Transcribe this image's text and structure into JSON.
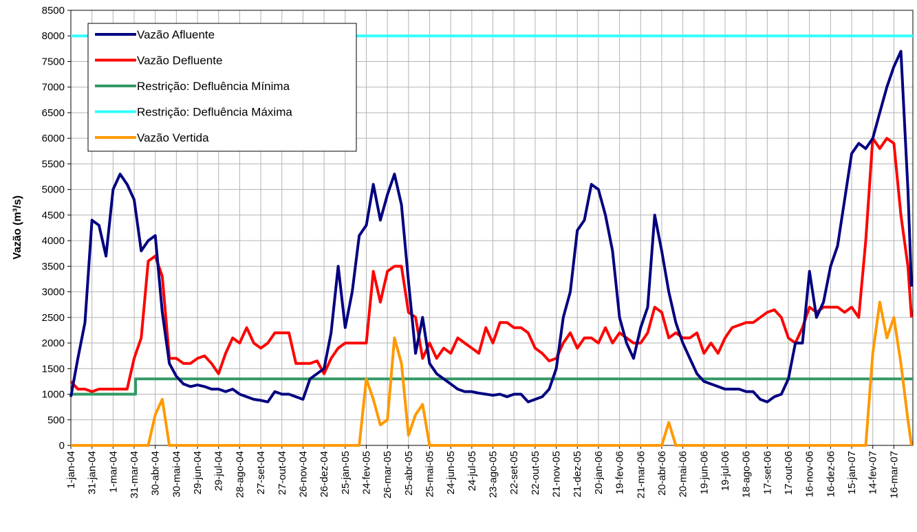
{
  "chart_data": {
    "type": "line",
    "y_label": "Vazão (m³/s)",
    "x": [
      0,
      10,
      20,
      30,
      40,
      50,
      60,
      70,
      80,
      90,
      100,
      110,
      120,
      130,
      140,
      150,
      160,
      170,
      180,
      190,
      200,
      210,
      220,
      230,
      240,
      250,
      260,
      270,
      280,
      290,
      300,
      310,
      320,
      330,
      340,
      350,
      360,
      370,
      380,
      390,
      400,
      410,
      420,
      430,
      440,
      450,
      460,
      470,
      480,
      490,
      500,
      510,
      520,
      530,
      540,
      550,
      560,
      570,
      580,
      590,
      600,
      610,
      620,
      630,
      640,
      650,
      660,
      670,
      680,
      690,
      700,
      710,
      720,
      730,
      740,
      750,
      760,
      770,
      780,
      790,
      800,
      810,
      820,
      830,
      840,
      850,
      860,
      870,
      880,
      890,
      900,
      910,
      920,
      930,
      940,
      950,
      960,
      970,
      980,
      990,
      1000,
      1010,
      1020,
      1030,
      1040,
      1050,
      1060,
      1070,
      1080,
      1090,
      1100,
      1110,
      1120,
      1130,
      1140,
      1150,
      1160,
      1170,
      1180,
      1190,
      1195
    ],
    "xlim": [
      0,
      1197
    ],
    "xticks": [
      {
        "value": 0,
        "label": "1-jan-04"
      },
      {
        "value": 30,
        "label": "31-jan-04"
      },
      {
        "value": 60,
        "label": "1-mar-04"
      },
      {
        "value": 90,
        "label": "31-mar-04"
      },
      {
        "value": 120,
        "label": "30-abr-04"
      },
      {
        "value": 150,
        "label": "30-mai-04"
      },
      {
        "value": 180,
        "label": "29-jun-04"
      },
      {
        "value": 210,
        "label": "29-jul-04"
      },
      {
        "value": 240,
        "label": "28-ago-04"
      },
      {
        "value": 270,
        "label": "27-set-04"
      },
      {
        "value": 300,
        "label": "27-out-04"
      },
      {
        "value": 330,
        "label": "26-nov-04"
      },
      {
        "value": 360,
        "label": "26-dez-04"
      },
      {
        "value": 390,
        "label": "25-jan-05"
      },
      {
        "value": 420,
        "label": "24-fev-05"
      },
      {
        "value": 450,
        "label": "26-mar-05"
      },
      {
        "value": 480,
        "label": "25-abr-05"
      },
      {
        "value": 510,
        "label": "25-mai-05"
      },
      {
        "value": 540,
        "label": "24-jun-05"
      },
      {
        "value": 570,
        "label": "24-jul-05"
      },
      {
        "value": 600,
        "label": "23-ago-05"
      },
      {
        "value": 630,
        "label": "22-set-05"
      },
      {
        "value": 660,
        "label": "22-out-05"
      },
      {
        "value": 690,
        "label": "21-nov-05"
      },
      {
        "value": 720,
        "label": "21-dez-05"
      },
      {
        "value": 750,
        "label": "20-jan-06"
      },
      {
        "value": 780,
        "label": "19-fev-06"
      },
      {
        "value": 810,
        "label": "21-mar-06"
      },
      {
        "value": 840,
        "label": "20-abr-06"
      },
      {
        "value": 870,
        "label": "20-mai-06"
      },
      {
        "value": 900,
        "label": "19-jun-06"
      },
      {
        "value": 930,
        "label": "19-jul-06"
      },
      {
        "value": 960,
        "label": "18-ago-06"
      },
      {
        "value": 990,
        "label": "17-set-06"
      },
      {
        "value": 1020,
        "label": "17-out-06"
      },
      {
        "value": 1050,
        "label": "16-nov-06"
      },
      {
        "value": 1080,
        "label": "16-dez-06"
      },
      {
        "value": 1110,
        "label": "15-jan-07"
      },
      {
        "value": 1140,
        "label": "14-fev-07"
      },
      {
        "value": 1170,
        "label": "16-mar-07"
      }
    ],
    "ylim": [
      0,
      8500
    ],
    "yticks": [
      0,
      500,
      1000,
      1500,
      2000,
      2500,
      3000,
      3500,
      4000,
      4500,
      5000,
      5500,
      6000,
      6500,
      7000,
      7500,
      8000,
      8500
    ],
    "grid": true,
    "legend": "upper left",
    "series": [
      {
        "name": "Vazão Afluente",
        "color": "#000080",
        "values": [
          950,
          1700,
          2400,
          4400,
          4300,
          3700,
          5000,
          5300,
          5100,
          4800,
          3800,
          4000,
          4100,
          2600,
          1600,
          1350,
          1200,
          1150,
          1180,
          1150,
          1100,
          1100,
          1050,
          1100,
          1000,
          950,
          900,
          880,
          850,
          1050,
          1000,
          1000,
          950,
          900,
          1300,
          1400,
          1500,
          2200,
          3500,
          2300,
          3000,
          4100,
          4300,
          5100,
          4400,
          4900,
          5300,
          4700,
          3200,
          1800,
          2500,
          1600,
          1400,
          1300,
          1200,
          1100,
          1050,
          1050,
          1020,
          1000,
          980,
          1000,
          950,
          1000,
          1000,
          850,
          900,
          950,
          1100,
          1500,
          2500,
          3000,
          4200,
          4400,
          5100,
          5000,
          4500,
          3800,
          2500,
          2000,
          1700,
          2300,
          2700,
          4500,
          3800,
          3000,
          2400,
          2000,
          1700,
          1400,
          1250,
          1200,
          1150,
          1100,
          1100,
          1100,
          1050,
          1050,
          900,
          850,
          950,
          1000,
          1300,
          2000,
          2000,
          3400,
          2500,
          2800,
          3500,
          3900,
          4800,
          5700,
          5900,
          5800,
          6000,
          6500,
          7000,
          7400,
          7700,
          5000,
          3100
        ]
      },
      {
        "name": "Vazão Defluente",
        "color": "#ff0000",
        "values": [
          1250,
          1100,
          1100,
          1050,
          1100,
          1100,
          1100,
          1100,
          1100,
          1700,
          2100,
          3600,
          3700,
          3300,
          1700,
          1700,
          1600,
          1600,
          1700,
          1750,
          1600,
          1400,
          1800,
          2100,
          2000,
          2300,
          2000,
          1900,
          2000,
          2200,
          2200,
          2200,
          1600,
          1600,
          1600,
          1650,
          1400,
          1700,
          1900,
          2000,
          2000,
          2000,
          2000,
          3400,
          2800,
          3400,
          3500,
          3500,
          2600,
          2500,
          1700,
          2000,
          1700,
          1900,
          1800,
          2100,
          2000,
          1900,
          1800,
          2300,
          2000,
          2400,
          2400,
          2300,
          2300,
          2200,
          1900,
          1800,
          1650,
          1700,
          2000,
          2200,
          1900,
          2100,
          2100,
          2000,
          2300,
          2000,
          2200,
          2100,
          2000,
          2000,
          2200,
          2700,
          2600,
          2100,
          2200,
          2100,
          2100,
          2200,
          1800,
          2000,
          1800,
          2100,
          2300,
          2350,
          2400,
          2400,
          2500,
          2600,
          2650,
          2500,
          2100,
          2000,
          2300,
          2700,
          2600,
          2700,
          2700,
          2700,
          2600,
          2700,
          2500,
          4000,
          6000,
          5800,
          6000,
          5900,
          4500,
          3500,
          2500
        ]
      },
      {
        "name": "Restrição: Defluência Mínima",
        "color": "#339966",
        "x": [
          0,
          92,
          92,
          1197
        ],
        "values": [
          1000,
          1000,
          1300,
          1300
        ]
      },
      {
        "name": "Restrição: Defluência Máxima",
        "color": "#33ffff",
        "x": [
          0,
          1197
        ],
        "values": [
          8000,
          8000
        ]
      },
      {
        "name": "Vazão Vertida",
        "color": "#ff9900",
        "values": [
          0,
          0,
          0,
          0,
          0,
          0,
          0,
          0,
          0,
          0,
          0,
          0,
          600,
          900,
          0,
          0,
          0,
          0,
          0,
          0,
          0,
          0,
          0,
          0,
          0,
          0,
          0,
          0,
          0,
          0,
          0,
          0,
          0,
          0,
          0,
          0,
          0,
          0,
          0,
          0,
          0,
          0,
          1300,
          900,
          400,
          500,
          2100,
          1600,
          200,
          600,
          800,
          0,
          0,
          0,
          0,
          0,
          0,
          0,
          0,
          0,
          0,
          0,
          0,
          0,
          0,
          0,
          0,
          0,
          0,
          0,
          0,
          0,
          0,
          0,
          0,
          0,
          0,
          0,
          0,
          0,
          0,
          0,
          0,
          0,
          0,
          450,
          0,
          0,
          0,
          0,
          0,
          0,
          0,
          0,
          0,
          0,
          0,
          0,
          0,
          0,
          0,
          0,
          0,
          0,
          0,
          0,
          0,
          0,
          0,
          0,
          0,
          0,
          0,
          0,
          1800,
          2800,
          2100,
          2500,
          1600,
          500,
          0
        ]
      }
    ]
  }
}
